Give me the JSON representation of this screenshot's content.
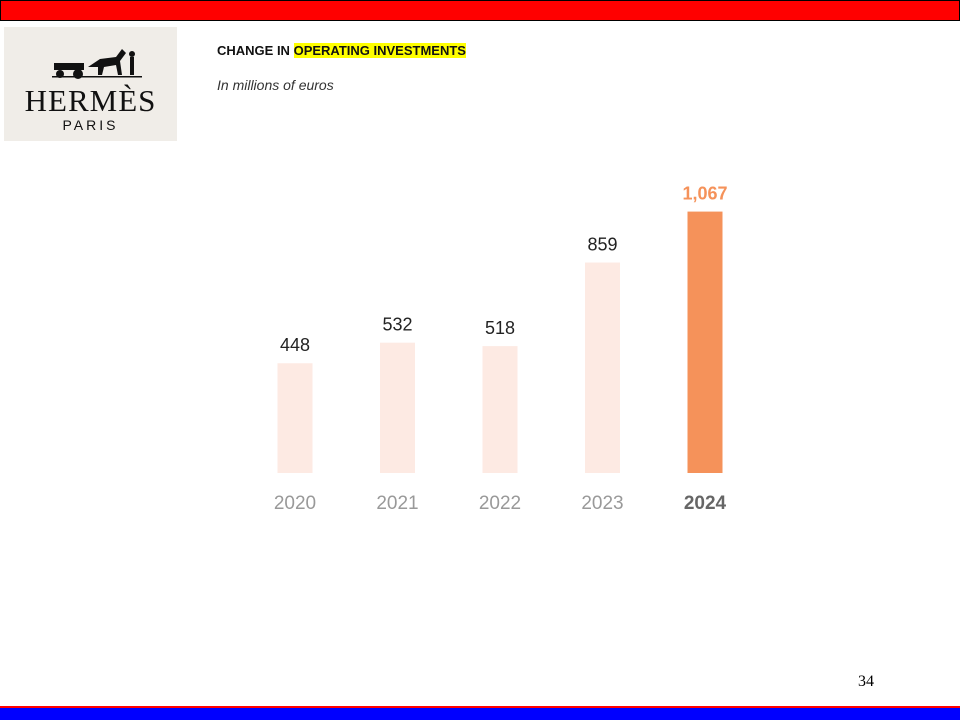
{
  "logo": {
    "brand": "HERMÈS",
    "city": "PARIS"
  },
  "chart_data": {
    "type": "bar",
    "title": "CHANGE IN",
    "title_highlight": "OPERATING INVESTMENTS",
    "subtitle": "In millions of euros",
    "categories": [
      "2020",
      "2021",
      "2022",
      "2023",
      "2024"
    ],
    "values": [
      448,
      532,
      518,
      859,
      1067
    ],
    "value_labels": [
      "448",
      "532",
      "518",
      "859",
      "1,067"
    ],
    "colors": [
      "#fdeae3",
      "#fdeae3",
      "#fdeae3",
      "#fdeae3",
      "#f5925a"
    ]
  },
  "page_number": "34"
}
